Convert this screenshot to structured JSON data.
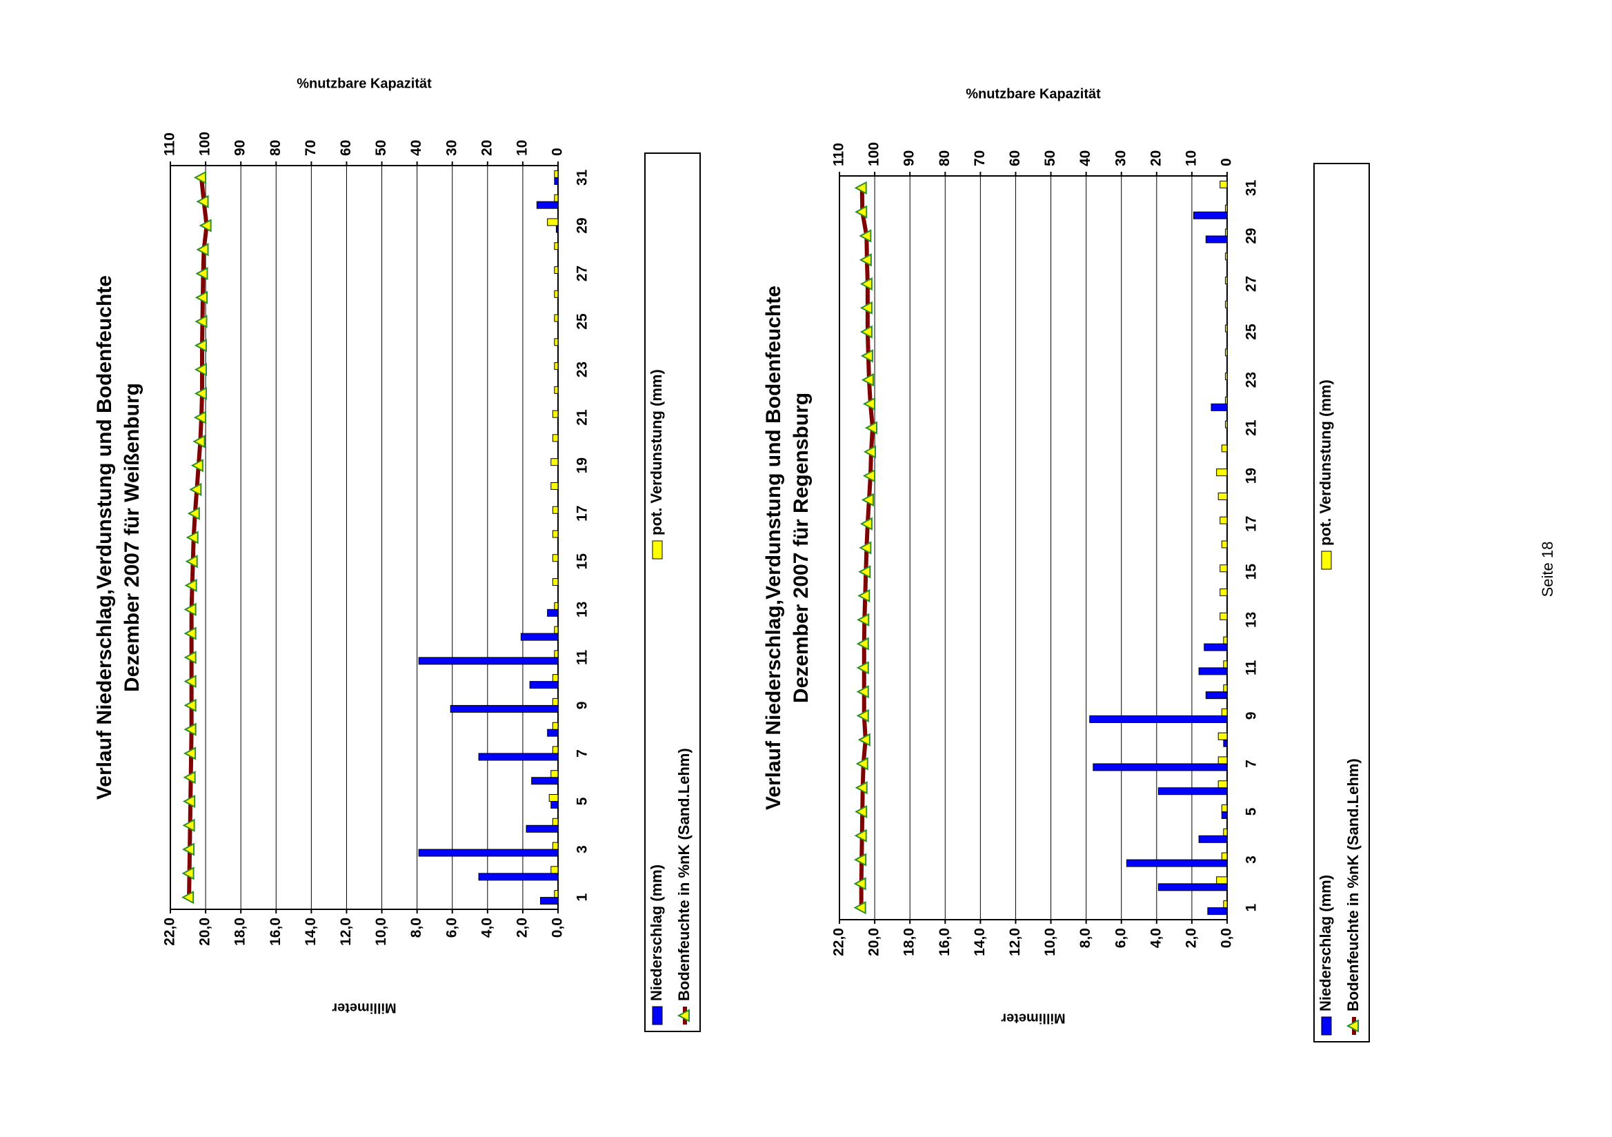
{
  "chart_data": [
    {
      "type": "bar",
      "title": "Verlauf Niederschlag,Verdunstung und Bodenfeuchte",
      "subtitle": "Dezember 2007 für Weißenburg",
      "y_label": "Millimeter",
      "y2_label": "%nutzbare Kapazität",
      "categories": [
        "1",
        null,
        "3",
        null,
        "5",
        null,
        "7",
        null,
        "9",
        null,
        "11",
        null,
        "13",
        null,
        "15",
        null,
        "17",
        null,
        "19",
        null,
        "21",
        null,
        "23",
        null,
        "25",
        null,
        "27",
        null,
        "29",
        null,
        "31"
      ],
      "series": [
        {
          "name": "Niederschlag (mm)",
          "color": "#0000ff",
          "values": [
            1.0,
            4.5,
            7.9,
            1.8,
            0.4,
            1.5,
            4.5,
            0.6,
            6.1,
            1.6,
            7.9,
            2.1,
            0.6,
            0,
            0,
            0,
            0,
            0,
            0,
            0,
            0,
            0,
            0,
            0,
            0,
            0,
            0,
            0,
            0.1,
            1.2,
            0.2
          ]
        },
        {
          "name": "pot. Verdunstung (mm)",
          "color": "#ffff00",
          "values": [
            0.2,
            0.4,
            0.3,
            0.3,
            0.5,
            0.4,
            0.3,
            0.3,
            0.3,
            0.3,
            0.2,
            0.2,
            0.2,
            0.3,
            0.3,
            0.3,
            0.3,
            0.4,
            0.4,
            0.3,
            0.3,
            0.2,
            0.2,
            0.2,
            0.2,
            0.2,
            0.2,
            0.2,
            0.6,
            0.2,
            0.2
          ]
        },
        {
          "name": "Bodenfeuchte in %nK (Sand.Lehm)",
          "color": "#800000",
          "marker_color": "#ffff00",
          "axis": "y2",
          "values": [
            104.7,
            104.6,
            104.5,
            104.4,
            104.3,
            104.2,
            104.1,
            104.0,
            104.0,
            104.0,
            104.0,
            104.0,
            104.0,
            103.8,
            103.6,
            103.4,
            103.0,
            102.5,
            102.0,
            101.5,
            101.2,
            101.0,
            101.0,
            101.0,
            100.9,
            100.8,
            100.7,
            100.5,
            99.7,
            100.5,
            101.2
          ]
        }
      ],
      "ylim": [
        0,
        22
      ],
      "yticks": [
        {
          "value": 0,
          "label": "0,0"
        },
        {
          "value": 2,
          "label": "2,0"
        },
        {
          "value": 4,
          "label": "4,0"
        },
        {
          "value": 6,
          "label": "6,0"
        },
        {
          "value": 8,
          "label": "8,0"
        },
        {
          "value": 10,
          "label": "10,0"
        },
        {
          "value": 12,
          "label": "12,0"
        },
        {
          "value": 14,
          "label": "14,0"
        },
        {
          "value": 16,
          "label": "16,0"
        },
        {
          "value": 18,
          "label": "18,0"
        },
        {
          "value": 20,
          "label": "20,0"
        },
        {
          "value": 22,
          "label": "22,0"
        }
      ],
      "y2lim": [
        0,
        110
      ],
      "y2ticks": [
        0,
        10,
        20,
        30,
        40,
        50,
        60,
        70,
        80,
        90,
        100,
        110
      ],
      "grid": true,
      "legend": "bottom"
    },
    {
      "type": "bar",
      "title": "Verlauf Niederschlag,Verdunstung und Bodenfeuchte",
      "subtitle": "Dezember 2007 für Regensburg",
      "y_label": "Millimeter",
      "y2_label": "%nutzbare Kapazität",
      "categories": [
        "1",
        null,
        "3",
        null,
        "5",
        null,
        "7",
        null,
        "9",
        null,
        "11",
        null,
        "13",
        null,
        "15",
        null,
        "17",
        null,
        "19",
        null,
        "21",
        null,
        "23",
        null,
        "25",
        null,
        "27",
        null,
        "29",
        null,
        "31"
      ],
      "series": [
        {
          "name": "Niederschlag (mm)",
          "color": "#0000ff",
          "values": [
            1.1,
            3.9,
            5.7,
            1.6,
            0.3,
            3.9,
            7.6,
            0.2,
            7.8,
            1.2,
            1.6,
            1.3,
            0,
            0,
            0,
            0,
            0,
            0,
            0,
            0,
            0,
            0.9,
            0,
            0,
            0,
            0,
            0,
            0,
            1.2,
            1.9,
            0
          ]
        },
        {
          "name": "pot. Verdunstung (mm)",
          "color": "#ffff00",
          "values": [
            0.2,
            0.6,
            0.3,
            0.2,
            0.3,
            0.5,
            0.5,
            0.5,
            0.3,
            0.2,
            0.2,
            0.2,
            0.4,
            0.4,
            0.4,
            0.3,
            0.4,
            0.5,
            0.6,
            0.3,
            0.1,
            0.1,
            0.1,
            0.1,
            0.1,
            0.1,
            0.1,
            0.1,
            0.1,
            0.1,
            0.4
          ]
        },
        {
          "name": "Bodenfeuchte in %nK (Sand.Lehm)",
          "color": "#800000",
          "marker_color": "#ffff00",
          "axis": "y2",
          "values": [
            103.8,
            103.8,
            103.7,
            103.6,
            103.5,
            103.4,
            103.2,
            102.6,
            103.0,
            103.0,
            103.0,
            103.0,
            102.9,
            102.7,
            102.5,
            102.3,
            102.0,
            101.6,
            101.2,
            101.0,
            100.6,
            101.2,
            101.6,
            101.8,
            102.0,
            102.0,
            102.0,
            102.2,
            102.3,
            103.5,
            103.6
          ]
        }
      ],
      "ylim": [
        0,
        22
      ],
      "yticks": [
        {
          "value": 0,
          "label": "0,0"
        },
        {
          "value": 2,
          "label": "2,0"
        },
        {
          "value": 4,
          "label": "4,0"
        },
        {
          "value": 6,
          "label": "6,0"
        },
        {
          "value": 8,
          "label": "8,0"
        },
        {
          "value": 10,
          "label": "10,0"
        },
        {
          "value": 12,
          "label": "12,0"
        },
        {
          "value": 14,
          "label": "14,0"
        },
        {
          "value": 16,
          "label": "16,0"
        },
        {
          "value": 18,
          "label": "18,0"
        },
        {
          "value": 20,
          "label": "20,0"
        },
        {
          "value": 22,
          "label": "22,0"
        }
      ],
      "y2lim": [
        0,
        110
      ],
      "y2ticks": [
        0,
        10,
        20,
        30,
        40,
        50,
        60,
        70,
        80,
        90,
        100,
        110
      ],
      "grid": true,
      "legend": "bottom"
    }
  ],
  "footer": "Seite 18"
}
